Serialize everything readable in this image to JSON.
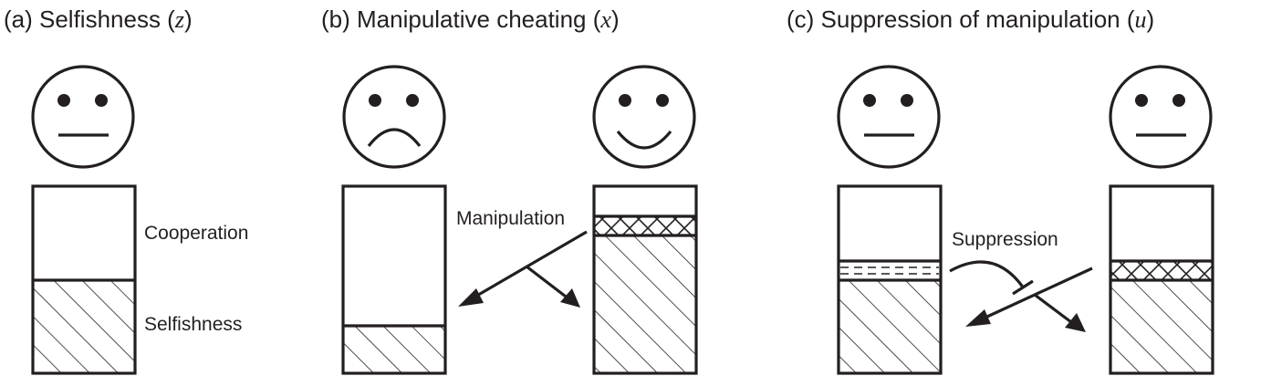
{
  "panels": {
    "a": {
      "title": "(a) Selfishness (",
      "var": "z",
      "close": ")"
    },
    "b": {
      "title": "(b) Manipulative cheating (",
      "var": "x",
      "close": ")"
    },
    "c": {
      "title": "(c) Suppression of manipulation (",
      "var": "u",
      "close": ")"
    }
  },
  "labels": {
    "cooperation": "Cooperation",
    "selfishness": "Selfishness",
    "manipulation": "Manipulation",
    "suppression": "Suppression"
  },
  "faces": {
    "a": "neutral",
    "b_left": "sad",
    "b_right": "happy",
    "c_left": "neutral",
    "c_right": "neutral"
  },
  "colors": {
    "ink": "#231f20",
    "background": "#ffffff"
  }
}
